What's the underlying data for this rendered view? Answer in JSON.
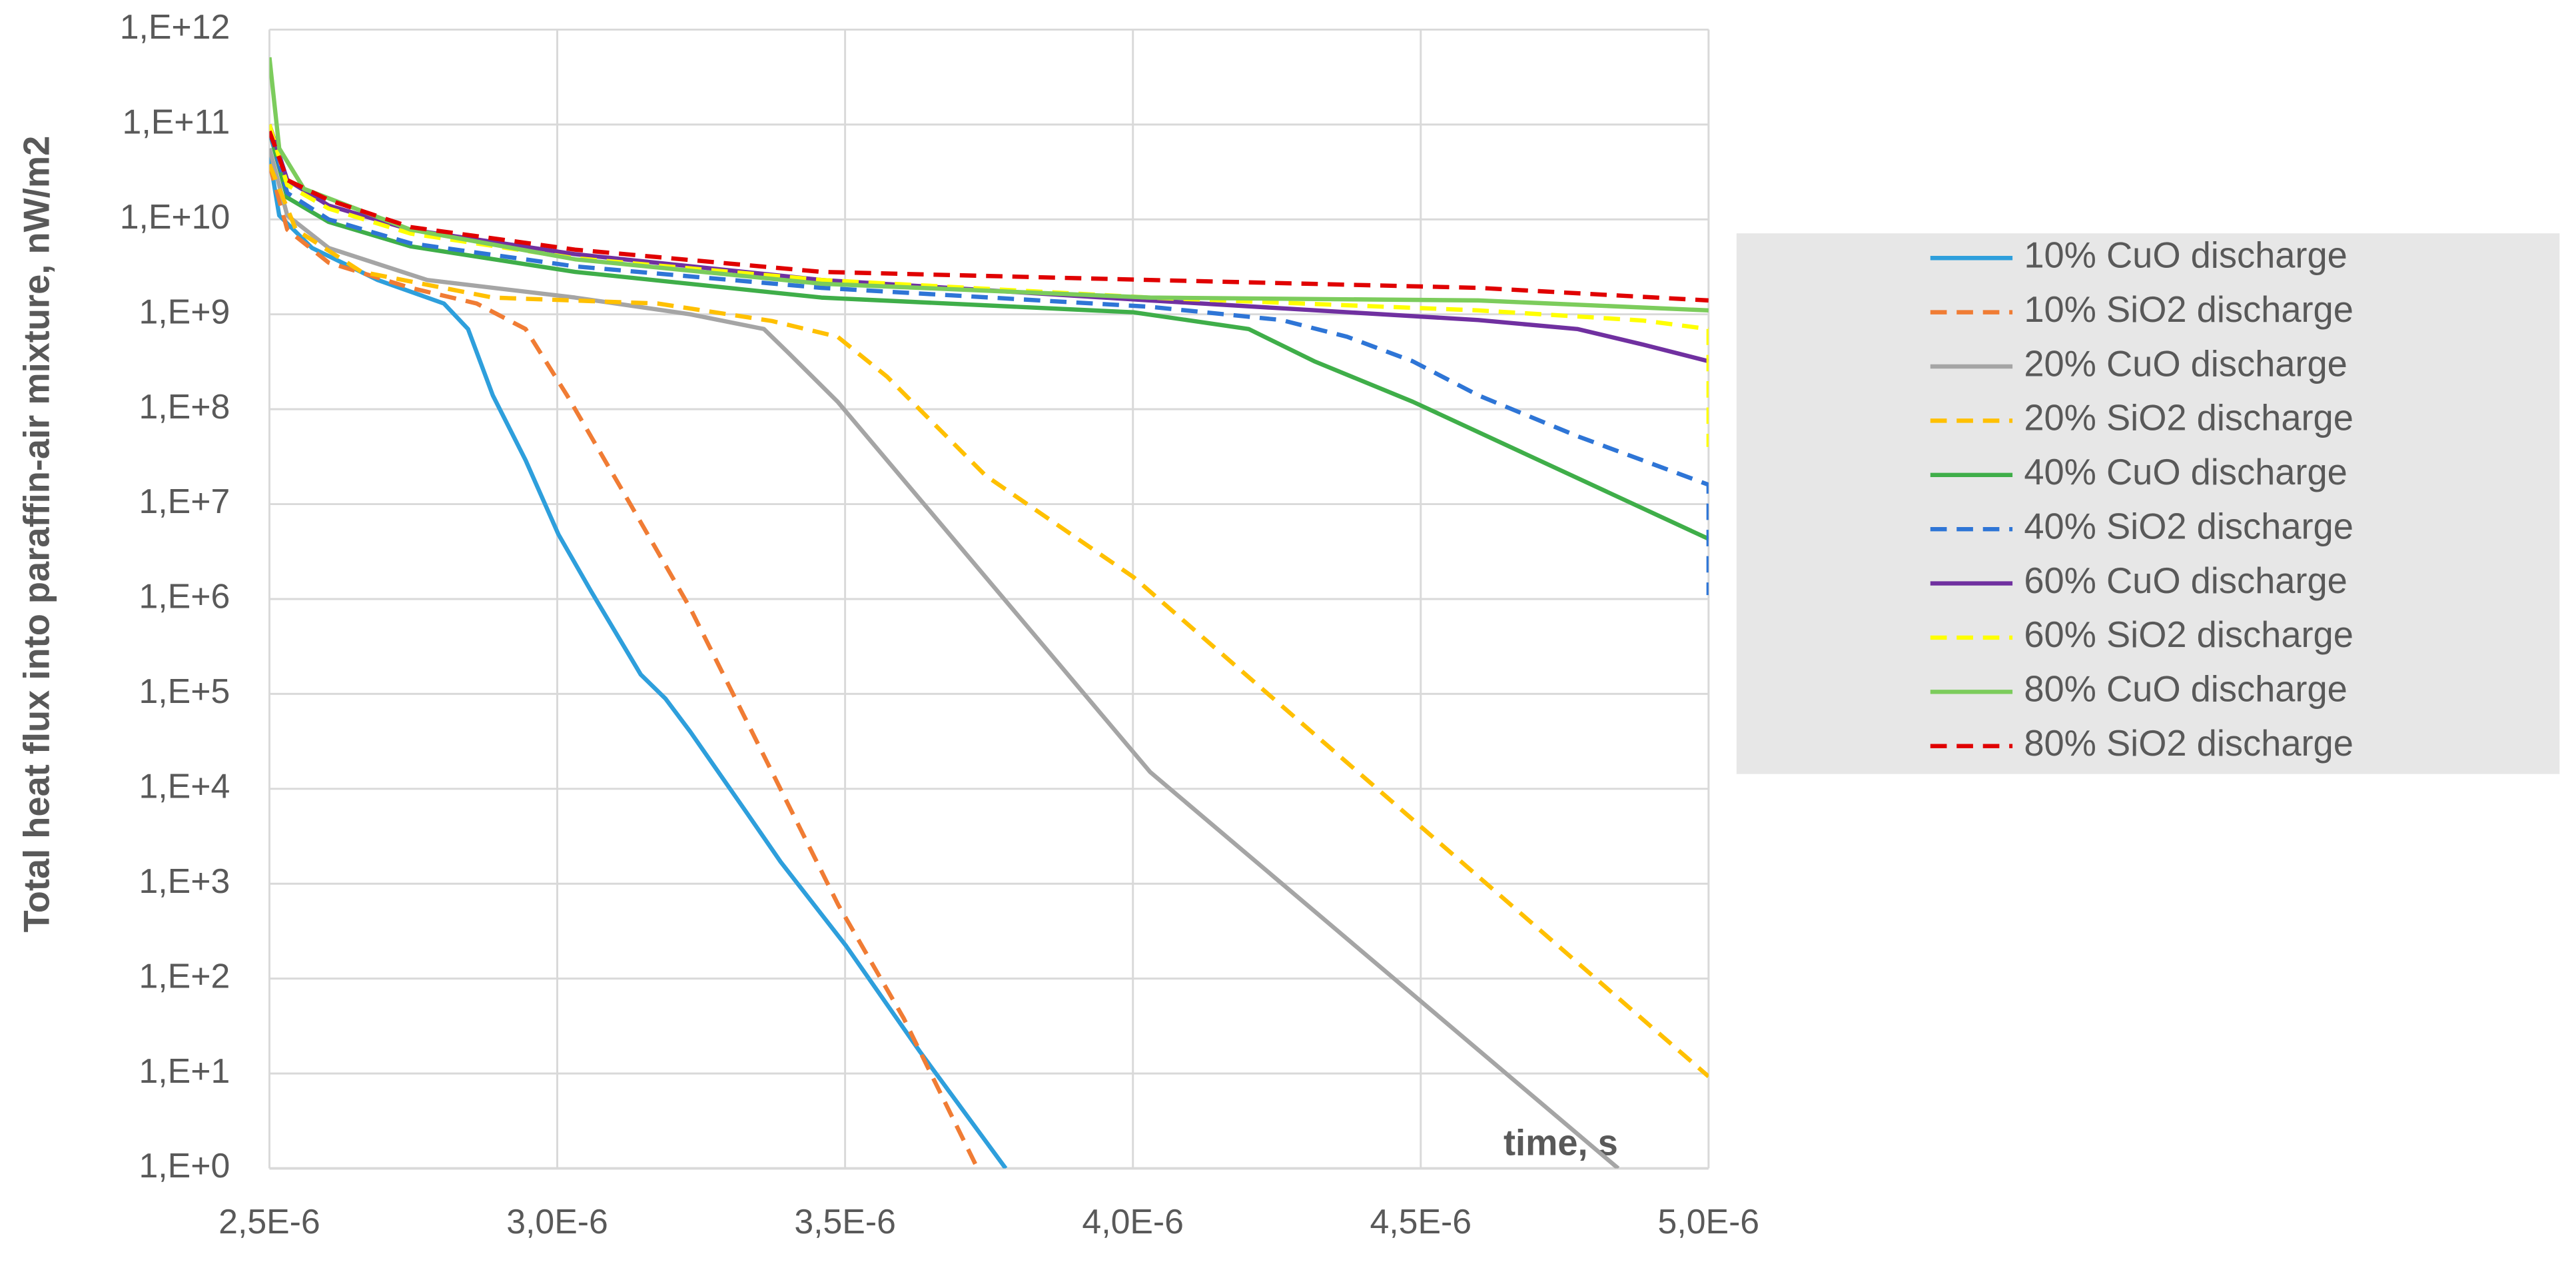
{
  "chart_data": {
    "type": "line",
    "yscale": "log",
    "grid": true,
    "legend": "right",
    "ylabel": "Total heat flux  into paraffin-air mixture, nW/m2",
    "xlabel": "time, s",
    "xlim": [
      2.5e-06,
      5e-06
    ],
    "ylim": [
      1,
      1000000000000.0
    ],
    "xticks": [
      {
        "value": 2.5e-06,
        "label": "2,5E-6"
      },
      {
        "value": 3e-06,
        "label": "3,0E-6"
      },
      {
        "value": 3.5e-06,
        "label": "3,5E-6"
      },
      {
        "value": 4e-06,
        "label": "4,0E-6"
      },
      {
        "value": 4.5e-06,
        "label": "4,5E-6"
      },
      {
        "value": 5e-06,
        "label": "5,0E-6"
      }
    ],
    "yticks": [
      {
        "value": 1,
        "label": "1,E+0"
      },
      {
        "value": 10,
        "label": "1,E+1"
      },
      {
        "value": 100,
        "label": "1,E+2"
      },
      {
        "value": 1000,
        "label": "1,E+3"
      },
      {
        "value": 10000,
        "label": "1,E+4"
      },
      {
        "value": 100000,
        "label": "1,E+5"
      },
      {
        "value": 1000000,
        "label": "1,E+6"
      },
      {
        "value": 10000000,
        "label": "1,E+7"
      },
      {
        "value": 100000000,
        "label": "1,E+8"
      },
      {
        "value": 1000000000,
        "label": "1,E+9"
      },
      {
        "value": 10000000000,
        "label": "1,E+10"
      },
      {
        "value": 100000000000,
        "label": "1,E+11"
      },
      {
        "value": 1000000000000,
        "label": "1,E+12"
      }
    ],
    "series": [
      {
        "name": "10% CuO discharge",
        "color": "#2e9fdc",
        "dash": false,
        "x": [
          2.5e-06,
          2.517e-06,
          2.574e-06,
          2.688e-06,
          2.803e-06,
          2.845e-06,
          2.888e-06,
          2.945e-06,
          3.002e-06,
          3.059e-06,
          3.145e-06,
          3.188e-06,
          3.231e-06,
          3.33e-06,
          3.388e-06,
          3.502e-06,
          3.63e-06,
          3.779e-06
        ],
        "values": [
          46000000000.0,
          11000000000.0,
          5000000000.0,
          2300000000.0,
          1300000000.0,
          700000000.0,
          140000000.0,
          29000000.0,
          4800000.0,
          1200000.0,
          160000.0,
          89000.0,
          40000.0,
          5500.0,
          1700.0,
          220.0,
          17.0,
          1
        ]
      },
      {
        "name": "10% SiO2 discharge",
        "color": "#f07c34",
        "dash": true,
        "x": [
          2.5e-06,
          2.531e-06,
          2.603e-06,
          2.745e-06,
          2.86e-06,
          2.945e-06,
          3.017e-06,
          3.116e-06,
          3.231e-06,
          3.345e-06,
          3.488e-06,
          3.602e-06,
          3.73e-06
        ],
        "values": [
          38000000000.0,
          7800000000.0,
          3500000000.0,
          1900000000.0,
          1300000000.0,
          700000000.0,
          140000000.0,
          13000000.0,
          800000.0,
          33000.0,
          600.0,
          38.0,
          1
        ]
      },
      {
        "name": "20% CuO discharge",
        "color": "#a5a5a5",
        "dash": false,
        "x": [
          2.5e-06,
          2.531e-06,
          2.603e-06,
          2.774e-06,
          3.031e-06,
          3.231e-06,
          3.359e-06,
          3.402e-06,
          3.487e-06,
          4.03e-06,
          4.843e-06
        ],
        "values": [
          56000000000.0,
          11000000000.0,
          5000000000.0,
          2300000000.0,
          1500000000.0,
          1000000000.0,
          700000000.0,
          390000000.0,
          120000000.0,
          15000.0,
          1
        ]
      },
      {
        "name": "20% SiO2 discharge",
        "color": "#ffc000",
        "dash": true,
        "x": [
          2.5e-06,
          2.546e-06,
          2.66e-06,
          2.888e-06,
          3.174e-06,
          3.373e-06,
          3.487e-06,
          3.573e-06,
          3.744e-06,
          4.001e-06,
          5e-06
        ],
        "values": [
          38000000000.0,
          7800000000.0,
          2800000000.0,
          1500000000.0,
          1300000000.0,
          850000000.0,
          580000000.0,
          220000000.0,
          20000000.0,
          1700000.0,
          9.3
        ]
      },
      {
        "name": "40% CuO discharge",
        "color": "#3fae49",
        "dash": false,
        "x": [
          2.5e-06,
          2.531e-06,
          2.603e-06,
          2.745e-06,
          3.031e-06,
          3.459e-06,
          4.001e-06,
          4.201e-06,
          4.315e-06,
          4.486e-06,
          5e-06
        ],
        "values": [
          85000000000.0,
          17000000000.0,
          9400000000.0,
          5200000000.0,
          2800000000.0,
          1500000000.0,
          1050000000.0,
          700000000.0,
          320000000.0,
          120000000.0,
          4300000.0
        ]
      },
      {
        "name": "40% SiO2 discharge",
        "color": "#2e75d6",
        "dash": true,
        "x": [
          2.5e-06,
          2.531e-06,
          2.603e-06,
          2.745e-06,
          3.031e-06,
          3.459e-06,
          4.03e-06,
          4.258e-06,
          4.372e-06,
          4.486e-06,
          4.6e-06,
          4.772e-06,
          5e-06,
          5e-06
        ],
        "values": [
          85000000000.0,
          19000000000.0,
          10000000000.0,
          5600000000.0,
          3200000000.0,
          1900000000.0,
          1200000000.0,
          870000000.0,
          580000000.0,
          320000000.0,
          140000000.0,
          52000000.0,
          16000000.0,
          1100000.0
        ]
      },
      {
        "name": "60% CuO discharge",
        "color": "#7030a0",
        "dash": false,
        "x": [
          2.5e-06,
          2.531e-06,
          2.603e-06,
          2.745e-06,
          3.031e-06,
          3.459e-06,
          4.03e-06,
          4.6e-06,
          4.772e-06,
          4.886e-06,
          5e-06
        ],
        "values": [
          100000000000.0,
          26000000000.0,
          14000000000.0,
          7800000000.0,
          4300000000.0,
          2300000000.0,
          1400000000.0,
          870000000.0,
          700000000.0,
          480000000.0,
          320000000.0
        ]
      },
      {
        "name": "60% SiO2 discharge",
        "color": "#ffff00",
        "dash": true,
        "x": [
          2.5e-06,
          2.531e-06,
          2.603e-06,
          2.745e-06,
          3.031e-06,
          3.459e-06,
          4.03e-06,
          4.6e-06,
          4.886e-06,
          5e-06,
          5e-06
        ],
        "values": [
          100000000000.0,
          23000000000.0,
          13000000000.0,
          7100000000.0,
          3900000000.0,
          2300000000.0,
          1500000000.0,
          1100000000.0,
          860000000.0,
          700000000.0,
          40000000.0
        ]
      },
      {
        "name": "80% CuO discharge",
        "color": "#7ccc5c",
        "dash": false,
        "x": [
          2.5e-06,
          2.517e-06,
          2.56e-06,
          2.745e-06,
          3.031e-06,
          3.459e-06,
          4.03e-06,
          4.6e-06,
          5e-06
        ],
        "values": [
          510000000000.0,
          56000000000.0,
          21000000000.0,
          7800000000.0,
          3800000000.0,
          2100000000.0,
          1500000000.0,
          1400000000.0,
          1100000000.0
        ]
      },
      {
        "name": "80% SiO2 discharge",
        "color": "#e00000",
        "dash": true,
        "x": [
          2.5e-06,
          2.531e-06,
          2.603e-06,
          2.745e-06,
          3.031e-06,
          3.459e-06,
          4.03e-06,
          4.6e-06,
          5e-06
        ],
        "values": [
          85000000000.0,
          26000000000.0,
          16000000000.0,
          8300000000.0,
          4800000000.0,
          2800000000.0,
          2300000000.0,
          1900000000.0,
          1400000000.0
        ]
      }
    ]
  }
}
